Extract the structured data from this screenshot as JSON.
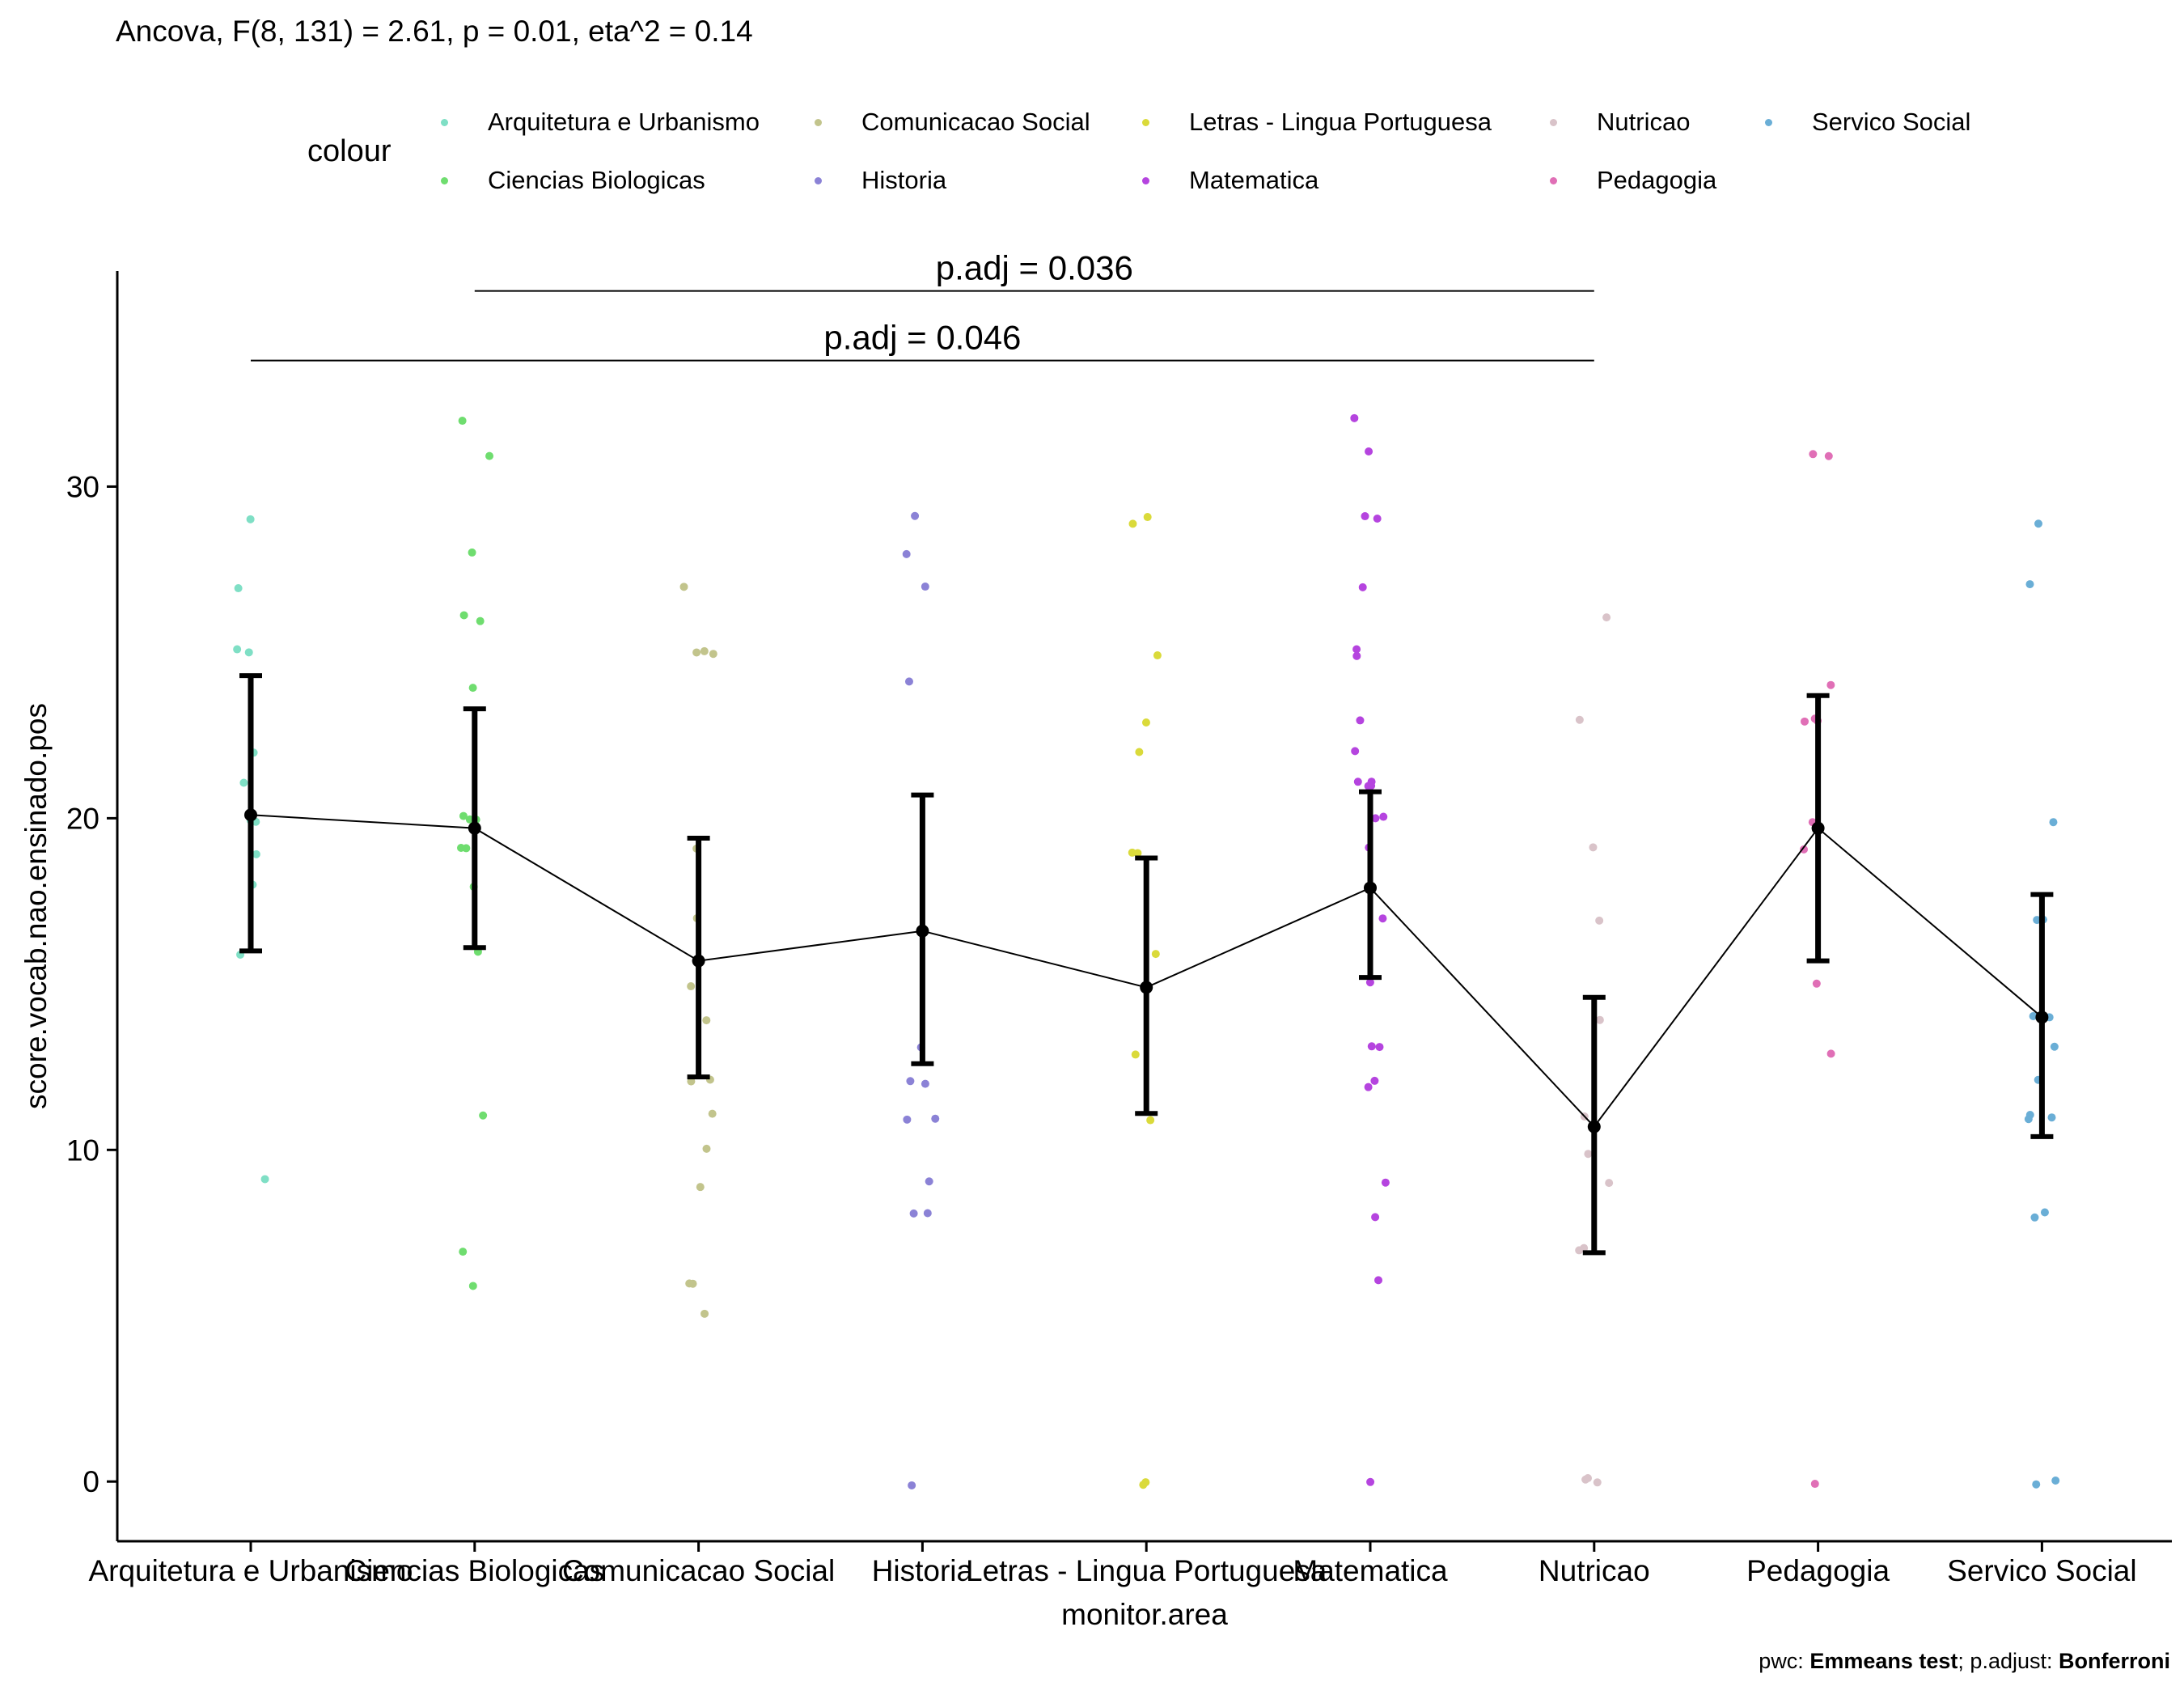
{
  "chart_data": {
    "type": "scatter",
    "subtitle": "Ancova, F(8, 131) = 2.61, p = 0.01, eta^2 = 0.14",
    "xlabel": "monitor.area",
    "ylabel": "score.vocab.nao.ensinado.pos",
    "ylim": [
      -1.8,
      36.5
    ],
    "yticks": [
      0,
      10,
      20,
      30
    ],
    "grid": false,
    "categories": [
      "Arquitetura e Urbanismo",
      "Ciencias Biologicas",
      "Comunicacao Social",
      "Historia",
      "Letras - Lingua Portuguesa",
      "Matematica",
      "Nutricao",
      "Pedagogia",
      "Servico Social"
    ],
    "legend": {
      "title": "colour",
      "placement": "top",
      "entries": [
        {
          "label": "Arquitetura e Urbanismo",
          "color": "#7fdfc5"
        },
        {
          "label": "Ciencias Biologicas",
          "color": "#6fdd6f"
        },
        {
          "label": "Comunicacao Social",
          "color": "#c2c48c"
        },
        {
          "label": "Historia",
          "color": "#8b82d6"
        },
        {
          "label": "Letras - Lingua Portuguesa",
          "color": "#dada3a"
        },
        {
          "label": "Matematica",
          "color": "#b544df"
        },
        {
          "label": "Nutricao",
          "color": "#d9c3c9"
        },
        {
          "label": "Pedagogia",
          "color": "#e06fb6"
        },
        {
          "label": "Servico Social",
          "color": "#6aaed6"
        }
      ]
    },
    "mean_series": {
      "values": [
        20.1,
        19.7,
        15.7,
        16.6,
        14.9,
        17.9,
        10.7,
        19.7,
        14.0
      ],
      "ci_low": [
        16.0,
        16.1,
        12.2,
        12.6,
        11.1,
        15.2,
        6.9,
        15.7,
        10.4
      ],
      "ci_high": [
        24.3,
        23.3,
        19.4,
        20.7,
        18.8,
        20.8,
        14.6,
        23.7,
        17.7
      ]
    },
    "points": [
      [
        29,
        27,
        25,
        25,
        22,
        21,
        20,
        20,
        19,
        18,
        16,
        9
      ],
      [
        32,
        31,
        28,
        26,
        26,
        24,
        20,
        20,
        20,
        19,
        19,
        18,
        16,
        11,
        7,
        6
      ],
      [
        27,
        25,
        25,
        25,
        19,
        17,
        15,
        14,
        12,
        12,
        11,
        10,
        9,
        6,
        6,
        5
      ],
      [
        29,
        28,
        27,
        24,
        13,
        12,
        12,
        11,
        11,
        9,
        8,
        8,
        0
      ],
      [
        29,
        29,
        25,
        23,
        22,
        19,
        19,
        16,
        13,
        11,
        0,
        0
      ],
      [
        32,
        31,
        29,
        29,
        27,
        25,
        25,
        23,
        22,
        21,
        21,
        21,
        21,
        20,
        20,
        19,
        17,
        15,
        13,
        13,
        12,
        12,
        9,
        8,
        6,
        0
      ],
      [
        26,
        23,
        19,
        17,
        14,
        11,
        10,
        9,
        7,
        7,
        0,
        0,
        0
      ],
      [
        31,
        31,
        24,
        23,
        23,
        23,
        20,
        19,
        15,
        13,
        0
      ],
      [
        29,
        27,
        20,
        17,
        17,
        14,
        14,
        13,
        12,
        11,
        11,
        11,
        8,
        8,
        0,
        0
      ]
    ],
    "comparisons": [
      {
        "from": "Ciencias Biologicas",
        "to": "Nutricao",
        "label": "p.adj = 0.036",
        "y": 35.9
      },
      {
        "from": "Arquitetura e Urbanismo",
        "to": "Nutricao",
        "label": "p.adj = 0.046",
        "y": 33.8
      }
    ]
  },
  "caption": {
    "prefix": "pwc: ",
    "test": "Emmeans test",
    "middle": "; p.adjust: ",
    "method": "Bonferroni"
  }
}
